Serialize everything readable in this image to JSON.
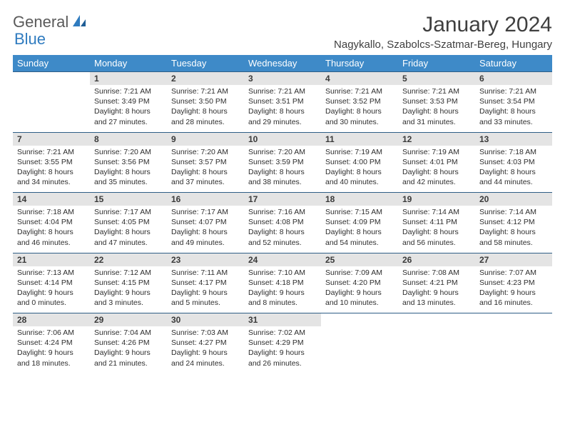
{
  "logo": {
    "text1": "General",
    "text2": "Blue"
  },
  "title": "January 2024",
  "location": "Nagykallo, Szabolcs-Szatmar-Bereg, Hungary",
  "colors": {
    "header_bg": "#3e8ac8",
    "header_text": "#ffffff",
    "daynum_bg": "#e4e4e4",
    "row_border": "#2f5e86",
    "body_text": "#2e2e2e",
    "logo_gray": "#5a5a5a",
    "logo_blue": "#2f7bbf"
  },
  "weekdays": [
    "Sunday",
    "Monday",
    "Tuesday",
    "Wednesday",
    "Thursday",
    "Friday",
    "Saturday"
  ],
  "weeks": [
    [
      null,
      {
        "n": "1",
        "sr": "7:21 AM",
        "ss": "3:49 PM",
        "dl": "8 hours and 27 minutes."
      },
      {
        "n": "2",
        "sr": "7:21 AM",
        "ss": "3:50 PM",
        "dl": "8 hours and 28 minutes."
      },
      {
        "n": "3",
        "sr": "7:21 AM",
        "ss": "3:51 PM",
        "dl": "8 hours and 29 minutes."
      },
      {
        "n": "4",
        "sr": "7:21 AM",
        "ss": "3:52 PM",
        "dl": "8 hours and 30 minutes."
      },
      {
        "n": "5",
        "sr": "7:21 AM",
        "ss": "3:53 PM",
        "dl": "8 hours and 31 minutes."
      },
      {
        "n": "6",
        "sr": "7:21 AM",
        "ss": "3:54 PM",
        "dl": "8 hours and 33 minutes."
      }
    ],
    [
      {
        "n": "7",
        "sr": "7:21 AM",
        "ss": "3:55 PM",
        "dl": "8 hours and 34 minutes."
      },
      {
        "n": "8",
        "sr": "7:20 AM",
        "ss": "3:56 PM",
        "dl": "8 hours and 35 minutes."
      },
      {
        "n": "9",
        "sr": "7:20 AM",
        "ss": "3:57 PM",
        "dl": "8 hours and 37 minutes."
      },
      {
        "n": "10",
        "sr": "7:20 AM",
        "ss": "3:59 PM",
        "dl": "8 hours and 38 minutes."
      },
      {
        "n": "11",
        "sr": "7:19 AM",
        "ss": "4:00 PM",
        "dl": "8 hours and 40 minutes."
      },
      {
        "n": "12",
        "sr": "7:19 AM",
        "ss": "4:01 PM",
        "dl": "8 hours and 42 minutes."
      },
      {
        "n": "13",
        "sr": "7:18 AM",
        "ss": "4:03 PM",
        "dl": "8 hours and 44 minutes."
      }
    ],
    [
      {
        "n": "14",
        "sr": "7:18 AM",
        "ss": "4:04 PM",
        "dl": "8 hours and 46 minutes."
      },
      {
        "n": "15",
        "sr": "7:17 AM",
        "ss": "4:05 PM",
        "dl": "8 hours and 47 minutes."
      },
      {
        "n": "16",
        "sr": "7:17 AM",
        "ss": "4:07 PM",
        "dl": "8 hours and 49 minutes."
      },
      {
        "n": "17",
        "sr": "7:16 AM",
        "ss": "4:08 PM",
        "dl": "8 hours and 52 minutes."
      },
      {
        "n": "18",
        "sr": "7:15 AM",
        "ss": "4:09 PM",
        "dl": "8 hours and 54 minutes."
      },
      {
        "n": "19",
        "sr": "7:14 AM",
        "ss": "4:11 PM",
        "dl": "8 hours and 56 minutes."
      },
      {
        "n": "20",
        "sr": "7:14 AM",
        "ss": "4:12 PM",
        "dl": "8 hours and 58 minutes."
      }
    ],
    [
      {
        "n": "21",
        "sr": "7:13 AM",
        "ss": "4:14 PM",
        "dl": "9 hours and 0 minutes."
      },
      {
        "n": "22",
        "sr": "7:12 AM",
        "ss": "4:15 PM",
        "dl": "9 hours and 3 minutes."
      },
      {
        "n": "23",
        "sr": "7:11 AM",
        "ss": "4:17 PM",
        "dl": "9 hours and 5 minutes."
      },
      {
        "n": "24",
        "sr": "7:10 AM",
        "ss": "4:18 PM",
        "dl": "9 hours and 8 minutes."
      },
      {
        "n": "25",
        "sr": "7:09 AM",
        "ss": "4:20 PM",
        "dl": "9 hours and 10 minutes."
      },
      {
        "n": "26",
        "sr": "7:08 AM",
        "ss": "4:21 PM",
        "dl": "9 hours and 13 minutes."
      },
      {
        "n": "27",
        "sr": "7:07 AM",
        "ss": "4:23 PM",
        "dl": "9 hours and 16 minutes."
      }
    ],
    [
      {
        "n": "28",
        "sr": "7:06 AM",
        "ss": "4:24 PM",
        "dl": "9 hours and 18 minutes."
      },
      {
        "n": "29",
        "sr": "7:04 AM",
        "ss": "4:26 PM",
        "dl": "9 hours and 21 minutes."
      },
      {
        "n": "30",
        "sr": "7:03 AM",
        "ss": "4:27 PM",
        "dl": "9 hours and 24 minutes."
      },
      {
        "n": "31",
        "sr": "7:02 AM",
        "ss": "4:29 PM",
        "dl": "9 hours and 26 minutes."
      },
      null,
      null,
      null
    ]
  ],
  "labels": {
    "sunrise": "Sunrise:",
    "sunset": "Sunset:",
    "daylight": "Daylight:"
  }
}
